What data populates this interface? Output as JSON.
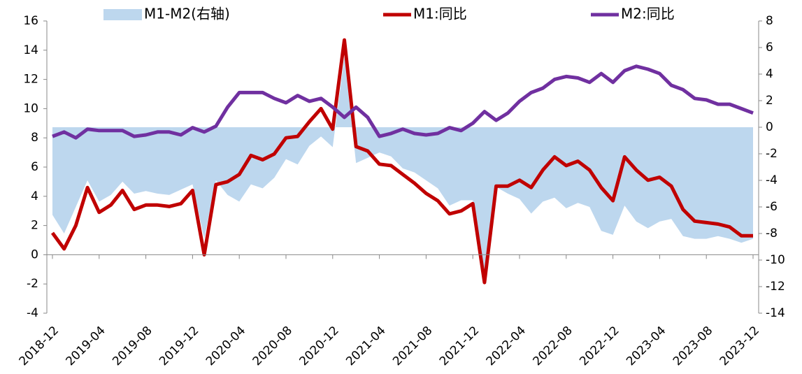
{
  "chart_data": {
    "type": "line",
    "categories": [
      "2018-12",
      null,
      null,
      null,
      "2019-04",
      null,
      null,
      null,
      "2019-08",
      null,
      null,
      null,
      "2019-12",
      null,
      null,
      null,
      "2020-04",
      null,
      null,
      null,
      "2020-08",
      null,
      null,
      null,
      "2020-12",
      null,
      null,
      null,
      "2021-04",
      null,
      null,
      null,
      "2021-08",
      null,
      null,
      null,
      "2021-12",
      null,
      null,
      null,
      "2022-04",
      null,
      null,
      null,
      "2022-08",
      null,
      null,
      null,
      "2022-12",
      null,
      null,
      null,
      "2023-04",
      null,
      null,
      null,
      "2023-08",
      null,
      null,
      null,
      "2023-12"
    ],
    "series": [
      {
        "name": "M1-M2(右轴)",
        "type": "area",
        "axis": "y2",
        "color": "#bdd7ee",
        "values": [
          -6.6,
          -8.0,
          -6.0,
          -4.0,
          -5.6,
          -5.1,
          -4.1,
          -5.0,
          -4.8,
          -5.0,
          -5.1,
          -4.7,
          -4.3,
          -8.4,
          -4.0,
          -5.1,
          -5.6,
          -4.3,
          -4.6,
          -3.8,
          -2.4,
          -2.8,
          -1.4,
          -0.7,
          -1.5,
          5.3,
          -2.7,
          -2.3,
          -1.9,
          -2.2,
          -3.1,
          -3.4,
          -4.0,
          -4.6,
          -5.9,
          -5.5,
          -5.5,
          -11.7,
          -4.5,
          -5.0,
          -5.4,
          -6.5,
          -5.6,
          -5.3,
          -6.1,
          -5.7,
          -6.0,
          -7.8,
          -8.1,
          -5.9,
          -7.1,
          -7.6,
          -7.1,
          -6.9,
          -8.2,
          -8.4,
          -8.4,
          -8.2,
          -8.4,
          -8.7,
          -8.4
        ]
      },
      {
        "name": "M1:同比",
        "type": "line",
        "color": "#c00000",
        "values": [
          1.5,
          0.4,
          2.0,
          4.6,
          2.9,
          3.4,
          4.4,
          3.1,
          3.4,
          3.4,
          3.3,
          3.5,
          4.4,
          0.0,
          4.8,
          5.0,
          5.5,
          6.8,
          6.5,
          6.9,
          8.0,
          8.1,
          9.1,
          10.0,
          8.6,
          14.7,
          7.4,
          7.1,
          6.2,
          6.1,
          5.5,
          4.9,
          4.2,
          3.7,
          2.8,
          3.0,
          3.5,
          -1.9,
          4.7,
          4.7,
          5.1,
          4.6,
          5.8,
          6.7,
          6.1,
          6.4,
          5.8,
          4.6,
          3.7,
          6.7,
          5.8,
          5.1,
          5.3,
          4.7,
          3.1,
          2.3,
          2.2,
          2.1,
          1.9,
          1.3,
          1.3
        ]
      },
      {
        "name": "M2:同比",
        "type": "line",
        "color": "#7030a0",
        "values": [
          8.1,
          8.4,
          8.0,
          8.6,
          8.5,
          8.5,
          8.5,
          8.1,
          8.2,
          8.4,
          8.4,
          8.2,
          8.7,
          8.4,
          8.8,
          10.1,
          11.1,
          11.1,
          11.1,
          10.7,
          10.4,
          10.9,
          10.5,
          10.7,
          10.1,
          9.4,
          10.1,
          9.4,
          8.1,
          8.3,
          8.6,
          8.3,
          8.2,
          8.3,
          8.7,
          8.5,
          9.0,
          9.8,
          9.2,
          9.7,
          10.5,
          11.1,
          11.4,
          12.0,
          12.2,
          12.1,
          11.8,
          12.4,
          11.8,
          12.6,
          12.9,
          12.7,
          12.4,
          11.6,
          11.3,
          10.7,
          10.6,
          10.3,
          10.3,
          10.0,
          9.7
        ]
      }
    ],
    "ylim": [
      -4,
      16
    ],
    "yticks": [
      -4,
      -2,
      0,
      2,
      4,
      6,
      8,
      10,
      12,
      14,
      16
    ],
    "y2lim": [
      -14,
      8
    ],
    "y2ticks": [
      -14,
      -12,
      -10,
      -8,
      -6,
      -4,
      -2,
      0,
      2,
      4,
      6,
      8
    ],
    "legend": "top"
  }
}
